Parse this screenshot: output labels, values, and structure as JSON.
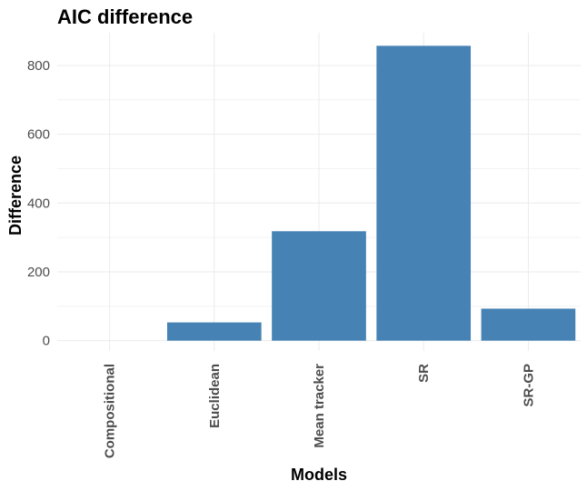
{
  "chart_data": {
    "type": "bar",
    "title": "AIC difference",
    "xlabel": "Models",
    "ylabel": "Difference",
    "categories": [
      "Compositional",
      "Euclidean",
      "Mean tracker",
      "SR",
      "SR-GP"
    ],
    "values": [
      0,
      53,
      318,
      857,
      93
    ],
    "ylim": [
      -30,
      895
    ],
    "yticks": [
      0,
      200,
      400,
      600,
      800
    ],
    "grid": true,
    "bar_color": "#4682b4"
  }
}
